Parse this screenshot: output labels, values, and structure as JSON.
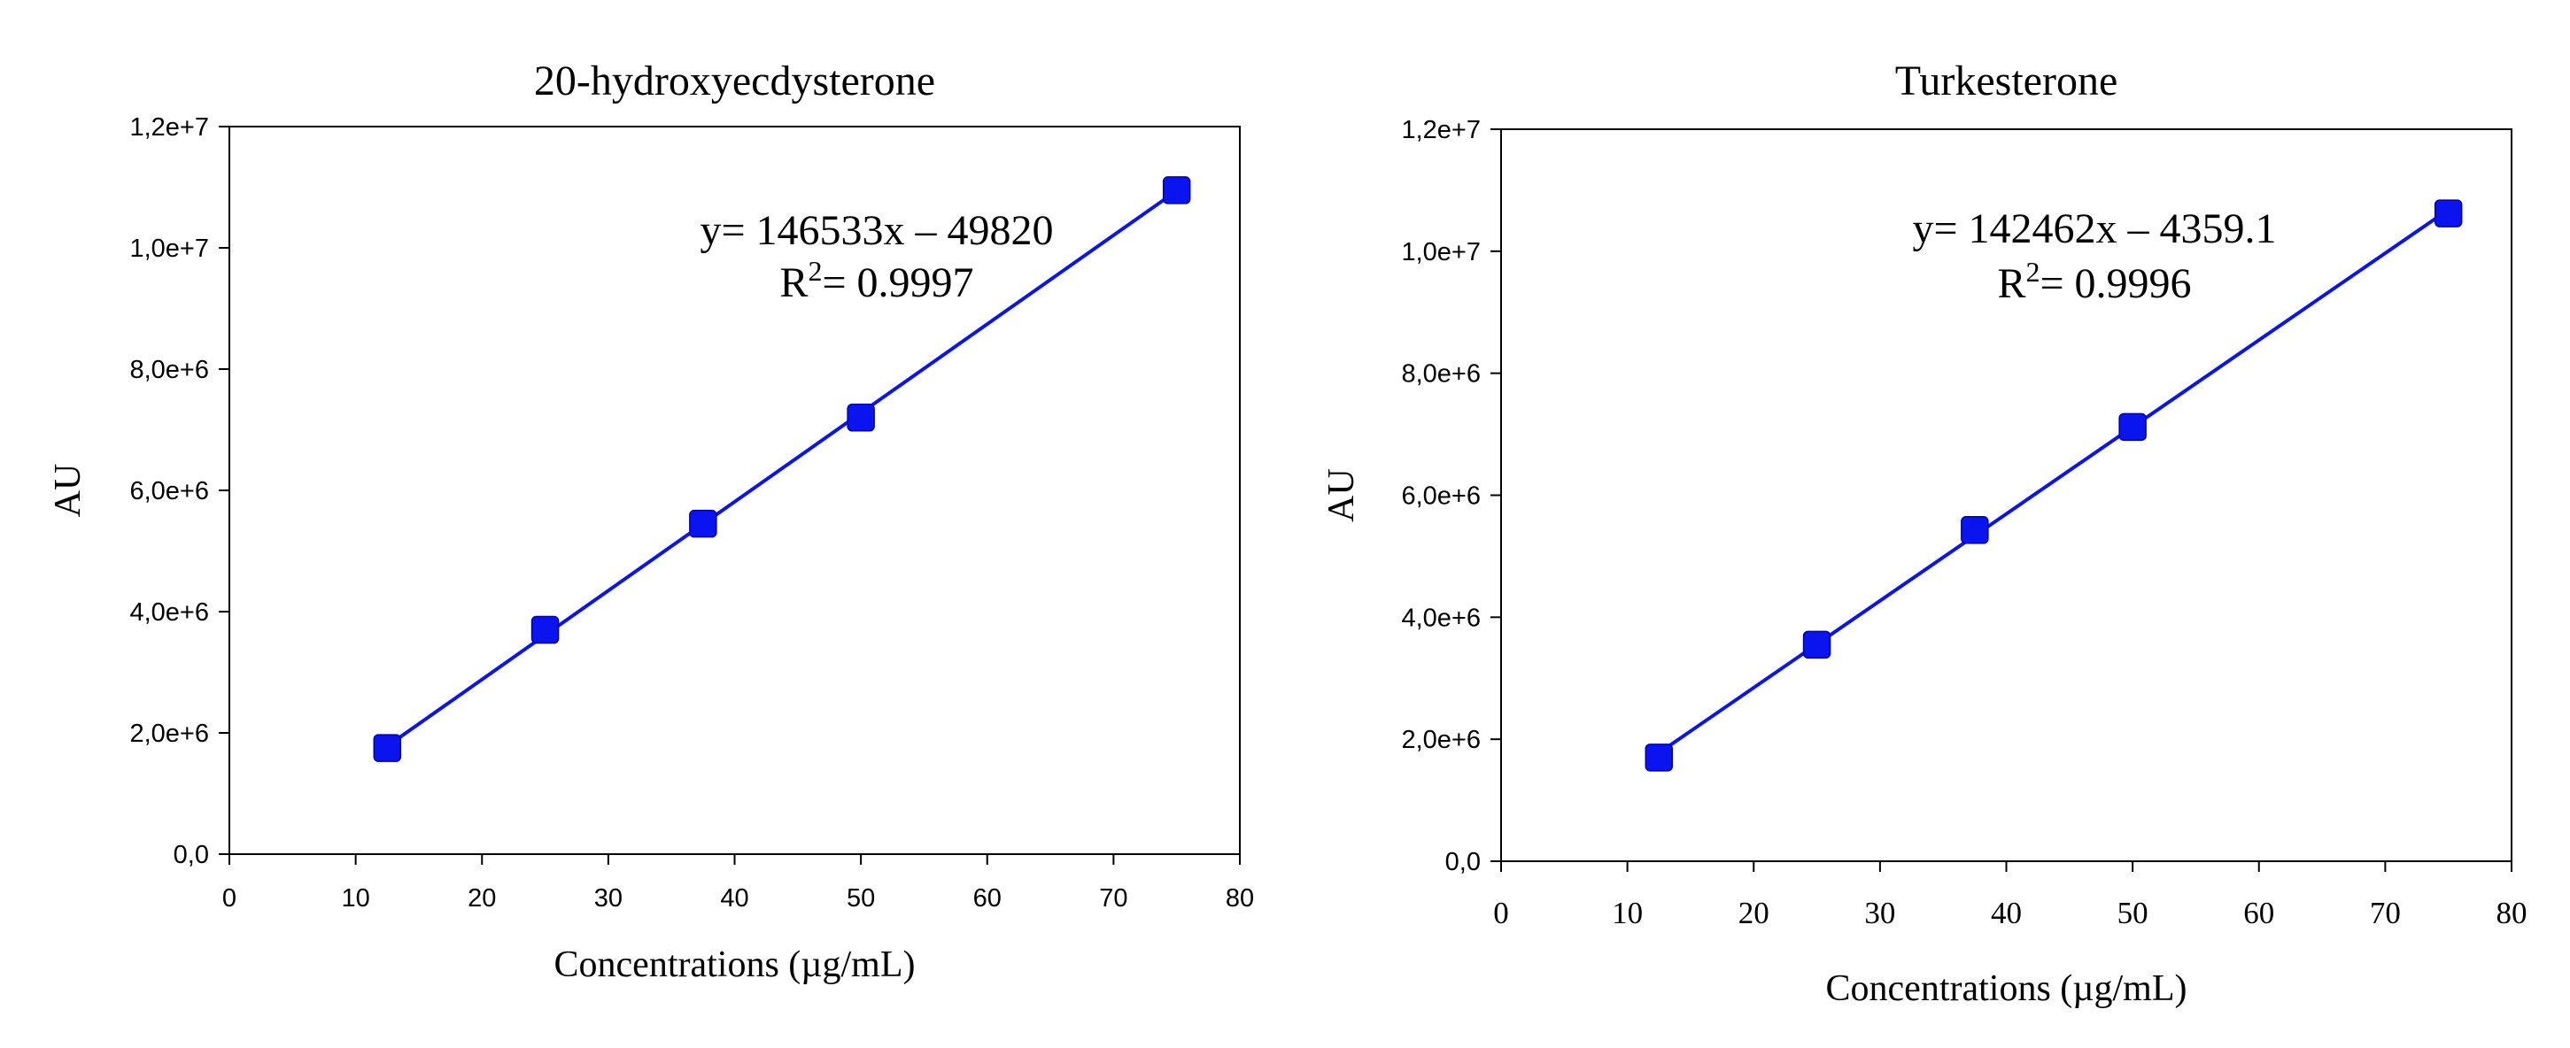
{
  "chart_data": [
    {
      "type": "scatter",
      "title": "20-hydroxyecdysterone",
      "xlabel": "Concentrations (µg/mL)",
      "ylabel": "AU",
      "xlim": [
        0,
        80
      ],
      "ylim": [
        0,
        12000000
      ],
      "x_ticks": [
        0,
        10,
        20,
        30,
        40,
        50,
        60,
        70,
        80
      ],
      "x_tick_labels": [
        "0",
        "10",
        "20",
        "30",
        "40",
        "50",
        "60",
        "70",
        "80"
      ],
      "y_ticks": [
        0,
        2000000,
        4000000,
        6000000,
        8000000,
        10000000,
        12000000
      ],
      "y_tick_labels": [
        "0,0",
        "2,0e+6",
        "4,0e+6",
        "6,0e+6",
        "8,0e+6",
        "1,0e+7",
        "1,2e+7"
      ],
      "grid": false,
      "series": [
        {
          "name": "20-hydroxyecdysterone",
          "x": [
            12.5,
            25,
            37.5,
            50,
            75
          ],
          "y": [
            1750000,
            3700000,
            5450000,
            7200000,
            10950000
          ],
          "marker": "square",
          "color": "#0a14ee"
        }
      ],
      "fit": {
        "slope": 146533,
        "intercept": -49820
      },
      "annotations": {
        "equation": "y= 146533x – 49820",
        "r2_prefix": "R",
        "r2_sup": "2",
        "r2_value": "= 0.9997"
      }
    },
    {
      "type": "scatter",
      "title": "Turkesterone",
      "xlabel": "Concentrations (µg/mL)",
      "ylabel": "AU",
      "xlim": [
        0,
        80
      ],
      "ylim": [
        0,
        12000000
      ],
      "x_ticks": [
        0,
        10,
        20,
        30,
        40,
        50,
        60,
        70,
        80
      ],
      "x_tick_labels": [
        "0",
        "10",
        "20",
        "30",
        "40",
        "50",
        "60",
        "70",
        "80"
      ],
      "y_ticks": [
        0,
        2000000,
        4000000,
        6000000,
        8000000,
        10000000,
        12000000
      ],
      "y_tick_labels": [
        "0,0",
        "2,0e+6",
        "4,0e+6",
        "6,0e+6",
        "8,0e+6",
        "1,0e+7",
        "1,2e+7"
      ],
      "grid": false,
      "series": [
        {
          "name": "Turkesterone",
          "x": [
            12.5,
            25,
            37.5,
            50,
            75
          ],
          "y": [
            1700000,
            3550000,
            5430000,
            7120000,
            10620000
          ],
          "marker": "square",
          "color": "#0a14ee"
        }
      ],
      "fit": {
        "slope": 142462,
        "intercept": -4359.1
      },
      "annotations": {
        "equation": "y= 142462x – 4359.1",
        "r2_prefix": "R",
        "r2_sup": "2",
        "r2_value": "= 0.9996"
      }
    }
  ]
}
